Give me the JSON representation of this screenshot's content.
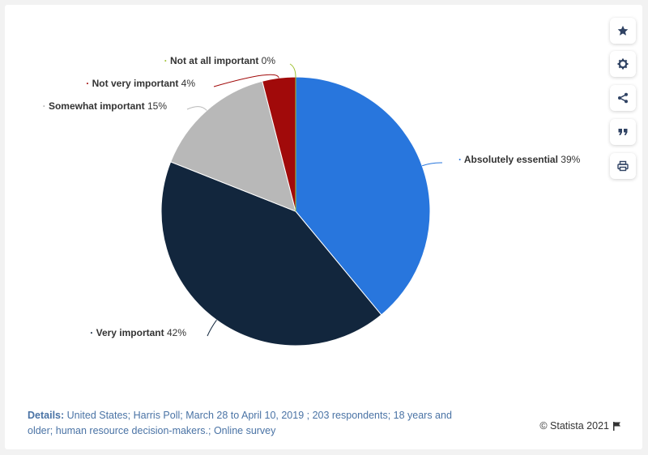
{
  "chart_data": {
    "type": "pie",
    "slices": [
      {
        "label": "Absolutely essential",
        "value": 39,
        "value_label": "39%",
        "color": "#2876dd"
      },
      {
        "label": "Very important",
        "value": 42,
        "value_label": "42%",
        "color": "#12263d"
      },
      {
        "label": "Somewhat important",
        "value": 15,
        "value_label": "15%",
        "color": "#b8b8b8"
      },
      {
        "label": "Not very important",
        "value": 4,
        "value_label": "4%",
        "color": "#a10a0a"
      },
      {
        "label": "Not at all important",
        "value": 0,
        "value_label": "0%",
        "color": "#9fc131"
      }
    ]
  },
  "toolbar": {
    "icons": [
      "star-icon",
      "gear-icon",
      "share-icon",
      "quote-icon",
      "print-icon"
    ]
  },
  "footer": {
    "details_label": "Details:",
    "details_text": "United States; Harris Poll; March 28 to April 10, 2019 ; 203 respondents; 18 years and older; human resource decision-makers.; Online survey",
    "copyright": "© Statista 2021"
  }
}
